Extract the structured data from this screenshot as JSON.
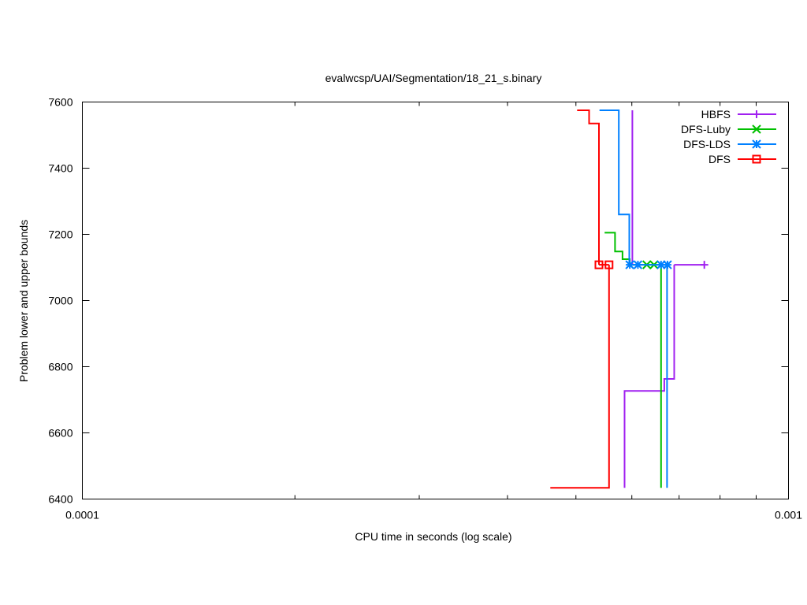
{
  "chart_data": {
    "type": "line",
    "title": "evalwcsp/UAI/Segmentation/18_21_s.binary",
    "xlabel": "CPU time in seconds (log scale)",
    "ylabel": "Problem lower and upper bounds",
    "xscale": "log",
    "xlim": [
      0.0001,
      0.001
    ],
    "ylim": [
      6400,
      7600
    ],
    "x_ticks": [
      {
        "value": 0.0001,
        "label": "0.0001"
      },
      {
        "value": 0.001,
        "label": "0.001"
      }
    ],
    "x_minor_ticks": [
      0.0002,
      0.0003,
      0.0004,
      0.0005,
      0.0006,
      0.0007,
      0.0008,
      0.0009
    ],
    "y_ticks": [
      6400,
      6600,
      6800,
      7000,
      7200,
      7400,
      7600
    ],
    "grid": false,
    "legend_position": "top-right",
    "series": [
      {
        "name": "HBFS",
        "color": "#a020f0",
        "marker": "plus",
        "upper": [
          [
            0.000601,
            7575
          ],
          [
            0.000601,
            7108
          ]
        ],
        "lower": [
          [
            0.000586,
            6434
          ],
          [
            0.000586,
            6727
          ],
          [
            0.000667,
            6727
          ],
          [
            0.000667,
            6763
          ],
          [
            0.000689,
            6763
          ],
          [
            0.000689,
            7108
          ]
        ],
        "tail": [
          [
            0.000689,
            7108
          ],
          [
            0.00076,
            7108
          ]
        ],
        "markers": [
          [
            0.00076,
            7108
          ]
        ]
      },
      {
        "name": "DFS-Luby",
        "color": "#00c000",
        "marker": "cross",
        "upper": [
          [
            0.000549,
            7205
          ],
          [
            0.000568,
            7205
          ],
          [
            0.000568,
            7148
          ],
          [
            0.000582,
            7148
          ],
          [
            0.000582,
            7125
          ],
          [
            0.000596,
            7125
          ],
          [
            0.000596,
            7108
          ]
        ],
        "lower": [
          [
            0.00066,
            6434
          ],
          [
            0.00066,
            7108
          ]
        ],
        "tail": [
          [
            0.000596,
            7108
          ],
          [
            0.00066,
            7108
          ]
        ],
        "markers": [
          [
            0.00063,
            7108
          ],
          [
            0.000645,
            7108
          ]
        ]
      },
      {
        "name": "DFS-LDS",
        "color": "#0080ff",
        "marker": "star",
        "upper": [
          [
            0.00054,
            7575
          ],
          [
            0.000575,
            7575
          ],
          [
            0.000575,
            7260
          ],
          [
            0.000595,
            7260
          ],
          [
            0.000595,
            7108
          ]
        ],
        "lower": [
          [
            0.000673,
            6434
          ],
          [
            0.000673,
            7108
          ]
        ],
        "tail": [
          [
            0.000595,
            7108
          ],
          [
            0.000673,
            7108
          ]
        ],
        "markers": [
          [
            0.000596,
            7108
          ],
          [
            0.000612,
            7108
          ],
          [
            0.00066,
            7108
          ],
          [
            0.000674,
            7108
          ]
        ]
      },
      {
        "name": "DFS",
        "color": "#ff0000",
        "marker": "square",
        "upper": [
          [
            0.000502,
            7575
          ],
          [
            0.000522,
            7575
          ],
          [
            0.000522,
            7535
          ],
          [
            0.000539,
            7535
          ],
          [
            0.000539,
            7108
          ]
        ],
        "lower": [
          [
            0.00046,
            6434
          ],
          [
            0.000557,
            6434
          ],
          [
            0.000557,
            7108
          ]
        ],
        "tail": [
          [
            0.000539,
            7108
          ],
          [
            0.000557,
            7108
          ]
        ],
        "markers": [
          [
            0.000539,
            7108
          ],
          [
            0.000557,
            7108
          ]
        ]
      }
    ]
  }
}
